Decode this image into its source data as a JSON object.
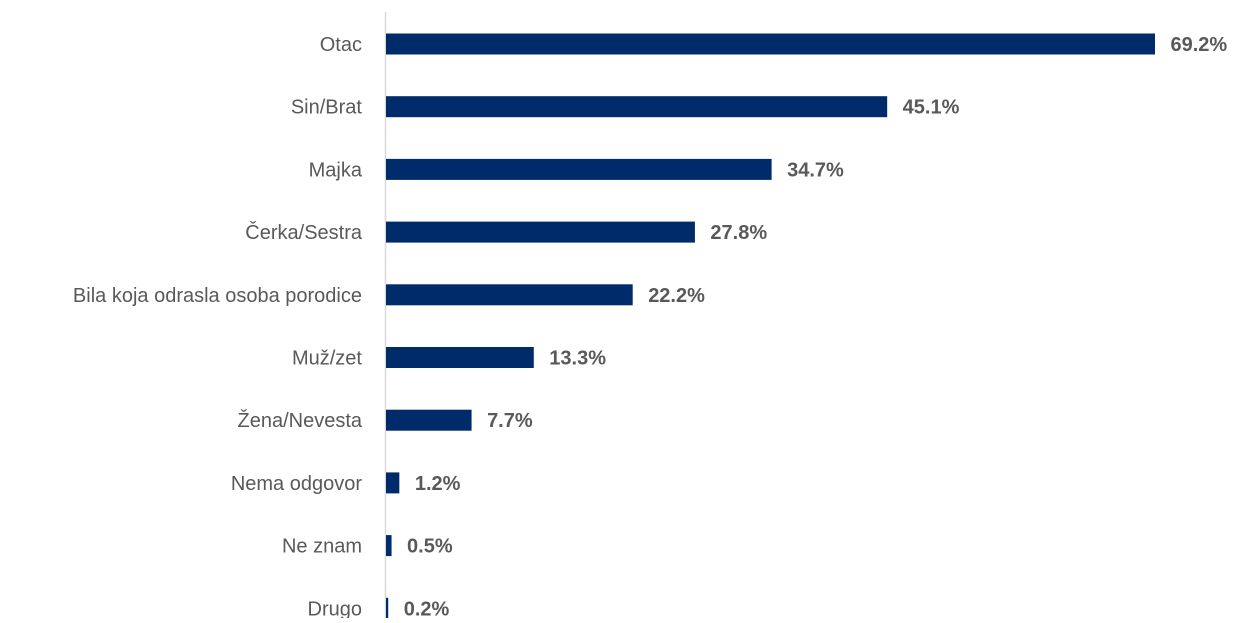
{
  "chart_data": {
    "type": "bar",
    "orientation": "horizontal",
    "categories": [
      "Otac",
      "Sin/Brat",
      "Majka",
      "Čerka/Sestra",
      "Bila koja odrasla osoba porodice",
      "Muž/zet",
      "Žena/Nevesta",
      "Nema odgovor",
      "Ne znam",
      "Drugo"
    ],
    "values": [
      69.2,
      45.1,
      34.7,
      27.8,
      22.2,
      13.3,
      7.7,
      1.2,
      0.5,
      0.2
    ],
    "value_labels": [
      "69.2%",
      "45.1%",
      "34.7%",
      "27.8%",
      "22.2%",
      "13.3%",
      "7.7%",
      "1.2%",
      "0.5%",
      "0.2%"
    ],
    "title": "",
    "xlabel": "",
    "ylabel": "",
    "xlim": [
      0,
      69.2
    ],
    "grid": false,
    "legend": "none",
    "colors": {
      "bar": "#002b6b",
      "axis": "#d9d9d9",
      "text": "#595959"
    }
  }
}
